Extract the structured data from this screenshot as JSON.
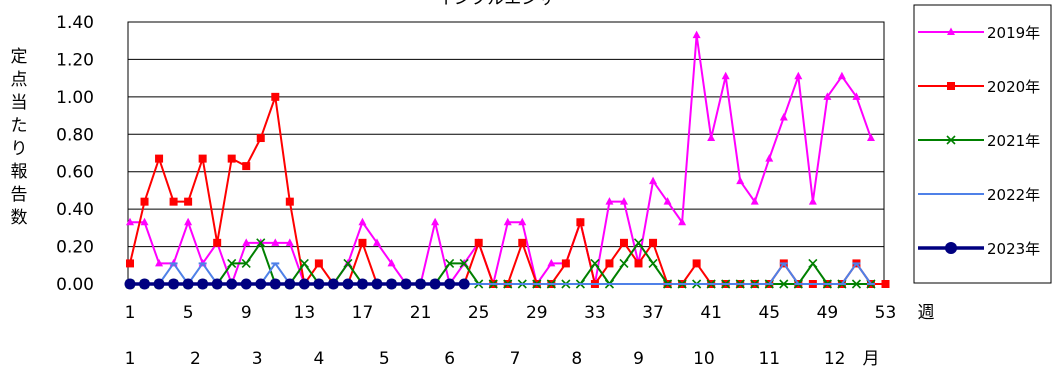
{
  "chart_data": {
    "type": "line",
    "title": "インフルエンザ",
    "ylabel": "定点当たり報告数",
    "x_unit_label": "週",
    "month_unit_label": "月",
    "ylim": [
      0,
      1.4
    ],
    "yticks": [
      "0.00",
      "0.20",
      "0.40",
      "0.60",
      "0.80",
      "1.00",
      "1.20",
      "1.40"
    ],
    "xlim": [
      1,
      53
    ],
    "xtick_labels": [
      "1",
      "5",
      "9",
      "13",
      "17",
      "21",
      "25",
      "29",
      "33",
      "37",
      "41",
      "45",
      "49",
      "53"
    ],
    "month_labels": [
      "1",
      "2",
      "3",
      "4",
      "5",
      "6",
      "7",
      "8",
      "9",
      "10",
      "11",
      "12"
    ],
    "month_weeks": [
      1,
      5.5,
      9.75,
      14,
      18.5,
      23,
      27.5,
      31.75,
      36,
      40.5,
      45,
      49.5
    ],
    "grid": true,
    "legend_position": "right",
    "series": [
      {
        "name": "2019年",
        "color": "#ff00ff",
        "marker": "triangle",
        "values": [
          0.33,
          0.33,
          0.11,
          0.11,
          0.33,
          0.11,
          0.22,
          0,
          0.22,
          0.22,
          0.22,
          0.22,
          0,
          0,
          0,
          0.11,
          0.33,
          0.22,
          0.11,
          0,
          0,
          0.33,
          0,
          0.11,
          0.22,
          0,
          0.33,
          0.33,
          0,
          0.11,
          0.11,
          0.33,
          0,
          0.44,
          0.44,
          0.11,
          0.55,
          0.44,
          0.33,
          1.33,
          0.78,
          1.11,
          0.55,
          0.44,
          0.67,
          0.89,
          1.11,
          0.44,
          1.0,
          1.11,
          1.0,
          0.78
        ]
      },
      {
        "name": "2020年",
        "color": "#ff0000",
        "marker": "square",
        "values": [
          0.11,
          0.44,
          0.67,
          0.44,
          0.44,
          0.67,
          0.22,
          0.67,
          0.63,
          0.78,
          1.0,
          0.44,
          0,
          0.11,
          0,
          0,
          0.22,
          0,
          0,
          0,
          0,
          0,
          0,
          0,
          0.22,
          0,
          0,
          0.22,
          0,
          0,
          0.11,
          0.33,
          0,
          0.11,
          0.22,
          0.11,
          0.22,
          0,
          0,
          0.11,
          0,
          0,
          0,
          0,
          0,
          0.11,
          0,
          0,
          0,
          0,
          0.11,
          0,
          0
        ]
      },
      {
        "name": "2021年",
        "color": "#008000",
        "marker": "x",
        "values": [
          0,
          0,
          0,
          0,
          0,
          0,
          0,
          0.11,
          0.11,
          0.22,
          0,
          0,
          0.11,
          0,
          0,
          0.11,
          0,
          0,
          0,
          0,
          0,
          0,
          0.11,
          0.11,
          0,
          0,
          0,
          0,
          0,
          0,
          0,
          0,
          0.11,
          0,
          0.11,
          0.22,
          0.11,
          0,
          0,
          0,
          0,
          0,
          0,
          0,
          0,
          0,
          0,
          0.11,
          0,
          0,
          0,
          0
        ]
      },
      {
        "name": "2022年",
        "color": "#4f81e8",
        "marker": "dash",
        "values": [
          0,
          0,
          0,
          0.11,
          0,
          0.11,
          0,
          0,
          0,
          0,
          0.11,
          0,
          0,
          0,
          0,
          0,
          0,
          0,
          0,
          0,
          0,
          0,
          0,
          0,
          0,
          0,
          0,
          0,
          0,
          0,
          0,
          0,
          0,
          0,
          0,
          0,
          0,
          0,
          0,
          0,
          0,
          0,
          0,
          0,
          0,
          0.11,
          0,
          0,
          0,
          0,
          0.11,
          0
        ]
      },
      {
        "name": "2023年",
        "color": "#000080",
        "marker": "circle",
        "values": [
          0,
          0,
          0,
          0,
          0,
          0,
          0,
          0,
          0,
          0,
          0,
          0,
          0,
          0,
          0,
          0,
          0,
          0,
          0,
          0,
          0,
          0,
          0,
          0
        ]
      }
    ]
  }
}
